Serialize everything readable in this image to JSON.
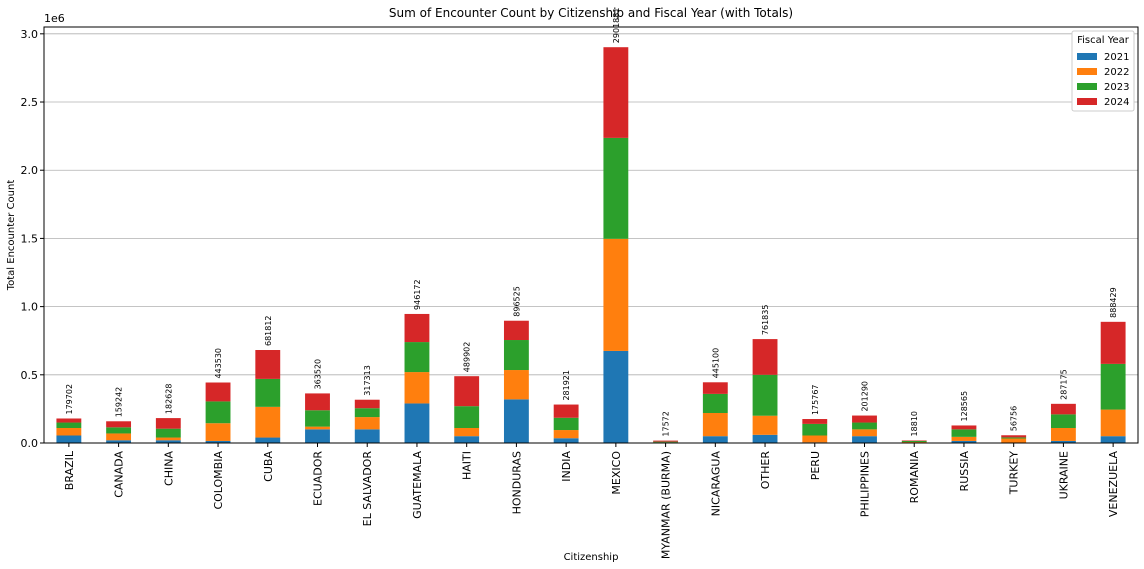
{
  "chart_data": {
    "type": "stacked_bar",
    "title": "Sum of Encounter Count by Citizenship and Fiscal Year (with Totals)",
    "xlabel": "Citizenship",
    "ylabel": "Total Encounter Count",
    "y_offset_label": "1e6",
    "legend_title": "Fiscal Year",
    "legend_loc": "upper right",
    "grid": true,
    "categories": [
      "BRAZIL",
      "CANADA",
      "CHINA",
      "COLOMBIA",
      "CUBA",
      "ECUADOR",
      "EL SALVADOR",
      "GUATEMALA",
      "HAITI",
      "HONDURAS",
      "INDIA",
      "MEXICO",
      "MYANMAR (BURMA)",
      "NICARAGUA",
      "OTHER",
      "PERU",
      "PHILIPPINES",
      "ROMANIA",
      "RUSSIA",
      "TURKEY",
      "UKRAINE",
      "VENEZUELA"
    ],
    "series": [
      {
        "name": "2021",
        "color": "#1f77b4",
        "values": [
          55000,
          20000,
          20000,
          15000,
          40000,
          100000,
          100000,
          290000,
          50000,
          320000,
          35000,
          675000,
          2000,
          50000,
          60000,
          5000,
          50000,
          3000,
          15000,
          3000,
          15000,
          50000
        ]
      },
      {
        "name": "2022",
        "color": "#ff7f0e",
        "values": [
          55000,
          50000,
          20000,
          130000,
          225000,
          20000,
          90000,
          230000,
          60000,
          215000,
          60000,
          822000,
          3000,
          170000,
          140000,
          50000,
          50000,
          4000,
          30000,
          30000,
          95000,
          195000
        ]
      },
      {
        "name": "2023",
        "color": "#2ca02c",
        "values": [
          40000,
          45000,
          65000,
          160000,
          205000,
          120000,
          65000,
          220000,
          160000,
          220000,
          90000,
          740000,
          5000,
          140000,
          300000,
          85000,
          50000,
          8000,
          55000,
          8000,
          100000,
          335000
        ]
      },
      {
        "name": "2024",
        "color": "#d62728",
        "values": [
          29702,
          44242,
          77628,
          138530,
          211812,
          123520,
          62313,
          206172,
          219902,
          141525,
          96921,
          664881,
          7572,
          85100,
          261835,
          35767,
          51290,
          3810,
          28565,
          15756,
          77175,
          308429
        ]
      }
    ],
    "totals": [
      179702,
      159242,
      182628,
      443530,
      681812,
      363520,
      317313,
      946172,
      489902,
      896525,
      281921,
      2901881,
      17572,
      445100,
      761835,
      175767,
      201290,
      18810,
      128565,
      56756,
      287175,
      888429
    ],
    "ylim": [
      0,
      3050000
    ],
    "yticks": [
      {
        "value": 0,
        "label": "0.0"
      },
      {
        "value": 500000,
        "label": "0.5"
      },
      {
        "value": 1000000,
        "label": "1.0"
      },
      {
        "value": 1500000,
        "label": "1.5"
      },
      {
        "value": 2000000,
        "label": "2.0"
      },
      {
        "value": 2500000,
        "label": "2.5"
      },
      {
        "value": 3000000,
        "label": "3.0"
      }
    ]
  }
}
